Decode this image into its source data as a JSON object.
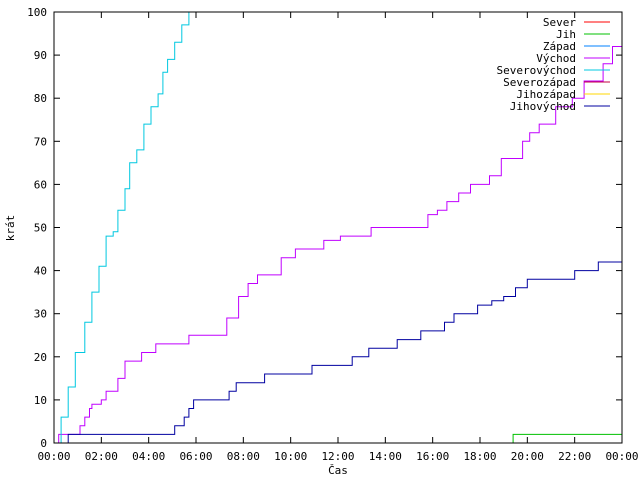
{
  "chart_data": {
    "type": "line",
    "title": "",
    "xlabel": "Čas",
    "ylabel": "krát",
    "xlim": [
      0,
      24
    ],
    "ylim": [
      0,
      100
    ],
    "grid": false,
    "legend_position": "top-right",
    "x_ticks": [
      {
        "value": 0,
        "label": "00:00"
      },
      {
        "value": 2,
        "label": "02:00"
      },
      {
        "value": 4,
        "label": "04:00"
      },
      {
        "value": 6,
        "label": "06:00"
      },
      {
        "value": 8,
        "label": "08:00"
      },
      {
        "value": 10,
        "label": "10:00"
      },
      {
        "value": 12,
        "label": "12:00"
      },
      {
        "value": 14,
        "label": "14:00"
      },
      {
        "value": 16,
        "label": "16:00"
      },
      {
        "value": 18,
        "label": "18:00"
      },
      {
        "value": 20,
        "label": "20:00"
      },
      {
        "value": 22,
        "label": "22:00"
      },
      {
        "value": 24,
        "label": "00:00"
      }
    ],
    "y_ticks": [
      {
        "value": 0,
        "label": "0"
      },
      {
        "value": 10,
        "label": "10"
      },
      {
        "value": 20,
        "label": "20"
      },
      {
        "value": 30,
        "label": "30"
      },
      {
        "value": 40,
        "label": "40"
      },
      {
        "value": 50,
        "label": "50"
      },
      {
        "value": 60,
        "label": "60"
      },
      {
        "value": 70,
        "label": "70"
      },
      {
        "value": 80,
        "label": "80"
      },
      {
        "value": 90,
        "label": "90"
      },
      {
        "value": 100,
        "label": "100"
      }
    ],
    "series": [
      {
        "name": "Sever",
        "color": "#ff0000",
        "x": [],
        "y": []
      },
      {
        "name": "Jih",
        "color": "#00c000",
        "x": [
          0,
          19.4,
          19.4,
          24
        ],
        "y": [
          0,
          0,
          2,
          2
        ]
      },
      {
        "name": "Západ",
        "color": "#0080ff",
        "x": [],
        "y": []
      },
      {
        "name": "Východ",
        "color": "#c000ff",
        "x": [
          0,
          0.2,
          0.4,
          0.6,
          1.1,
          1.3,
          1.5,
          1.6,
          2.0,
          2.2,
          2.7,
          3.0,
          3.7,
          4.3,
          5.7,
          7.3,
          7.8,
          8.2,
          8.6,
          9.0,
          9.6,
          10.2,
          10.8,
          11.4,
          12.1,
          12.7,
          13.4,
          14.4,
          15.5,
          15.8,
          16.2,
          16.6,
          17.1,
          17.6,
          18.4,
          18.9,
          19.8,
          20.1,
          20.5,
          21.2,
          21.9,
          22.4,
          23.2,
          23.6,
          24.0
        ],
        "y": [
          0,
          2,
          2,
          2,
          4,
          6,
          8,
          9,
          10,
          12,
          15,
          19,
          21,
          23,
          25,
          29,
          34,
          37,
          39,
          39,
          43,
          45,
          45,
          47,
          48,
          48,
          50,
          50,
          50,
          53,
          54,
          56,
          58,
          60,
          62,
          66,
          70,
          72,
          74,
          78,
          80,
          84,
          88,
          92,
          94
        ]
      },
      {
        "name": "Severovýchod",
        "color": "#00c8e0",
        "x": [
          0,
          0.3,
          0.6,
          0.9,
          1.3,
          1.6,
          1.9,
          2.2,
          2.5,
          2.7,
          3.0,
          3.2,
          3.5,
          3.8,
          4.1,
          4.4,
          4.6,
          4.8,
          5.1,
          5.4,
          5.7
        ],
        "y": [
          0,
          6,
          13,
          21,
          28,
          35,
          41,
          48,
          49,
          54,
          59,
          65,
          68,
          74,
          78,
          81,
          86,
          89,
          93,
          97,
          100
        ]
      },
      {
        "name": "Severozápad",
        "color": "#c00040",
        "x": [],
        "y": []
      },
      {
        "name": "Jihozápad",
        "color": "#ffd700",
        "x": [],
        "y": []
      },
      {
        "name": "Jihovýchod",
        "color": "#0000a0",
        "x": [
          0,
          0.4,
          0.6,
          4.6,
          5.1,
          5.5,
          5.7,
          5.9,
          6.2,
          6.5,
          7.4,
          7.7,
          8.5,
          8.9,
          9.2,
          10.0,
          10.4,
          10.9,
          11.4,
          12.0,
          12.6,
          13.3,
          13.9,
          14.5,
          15.0,
          15.5,
          16.0,
          16.5,
          16.9,
          17.4,
          17.9,
          18.5,
          19.0,
          19.5,
          20.0,
          20.4,
          21.0,
          21.5,
          22.0,
          22.5,
          23.0,
          23.5,
          24.0
        ],
        "y": [
          0,
          0,
          2,
          2,
          4,
          6,
          8,
          10,
          10,
          10,
          12,
          14,
          14,
          16,
          16,
          16,
          16,
          18,
          18,
          18,
          20,
          22,
          22,
          24,
          24,
          26,
          26,
          28,
          30,
          30,
          32,
          33,
          34,
          36,
          38,
          38,
          38,
          38,
          40,
          40,
          42,
          42,
          42
        ]
      }
    ]
  }
}
